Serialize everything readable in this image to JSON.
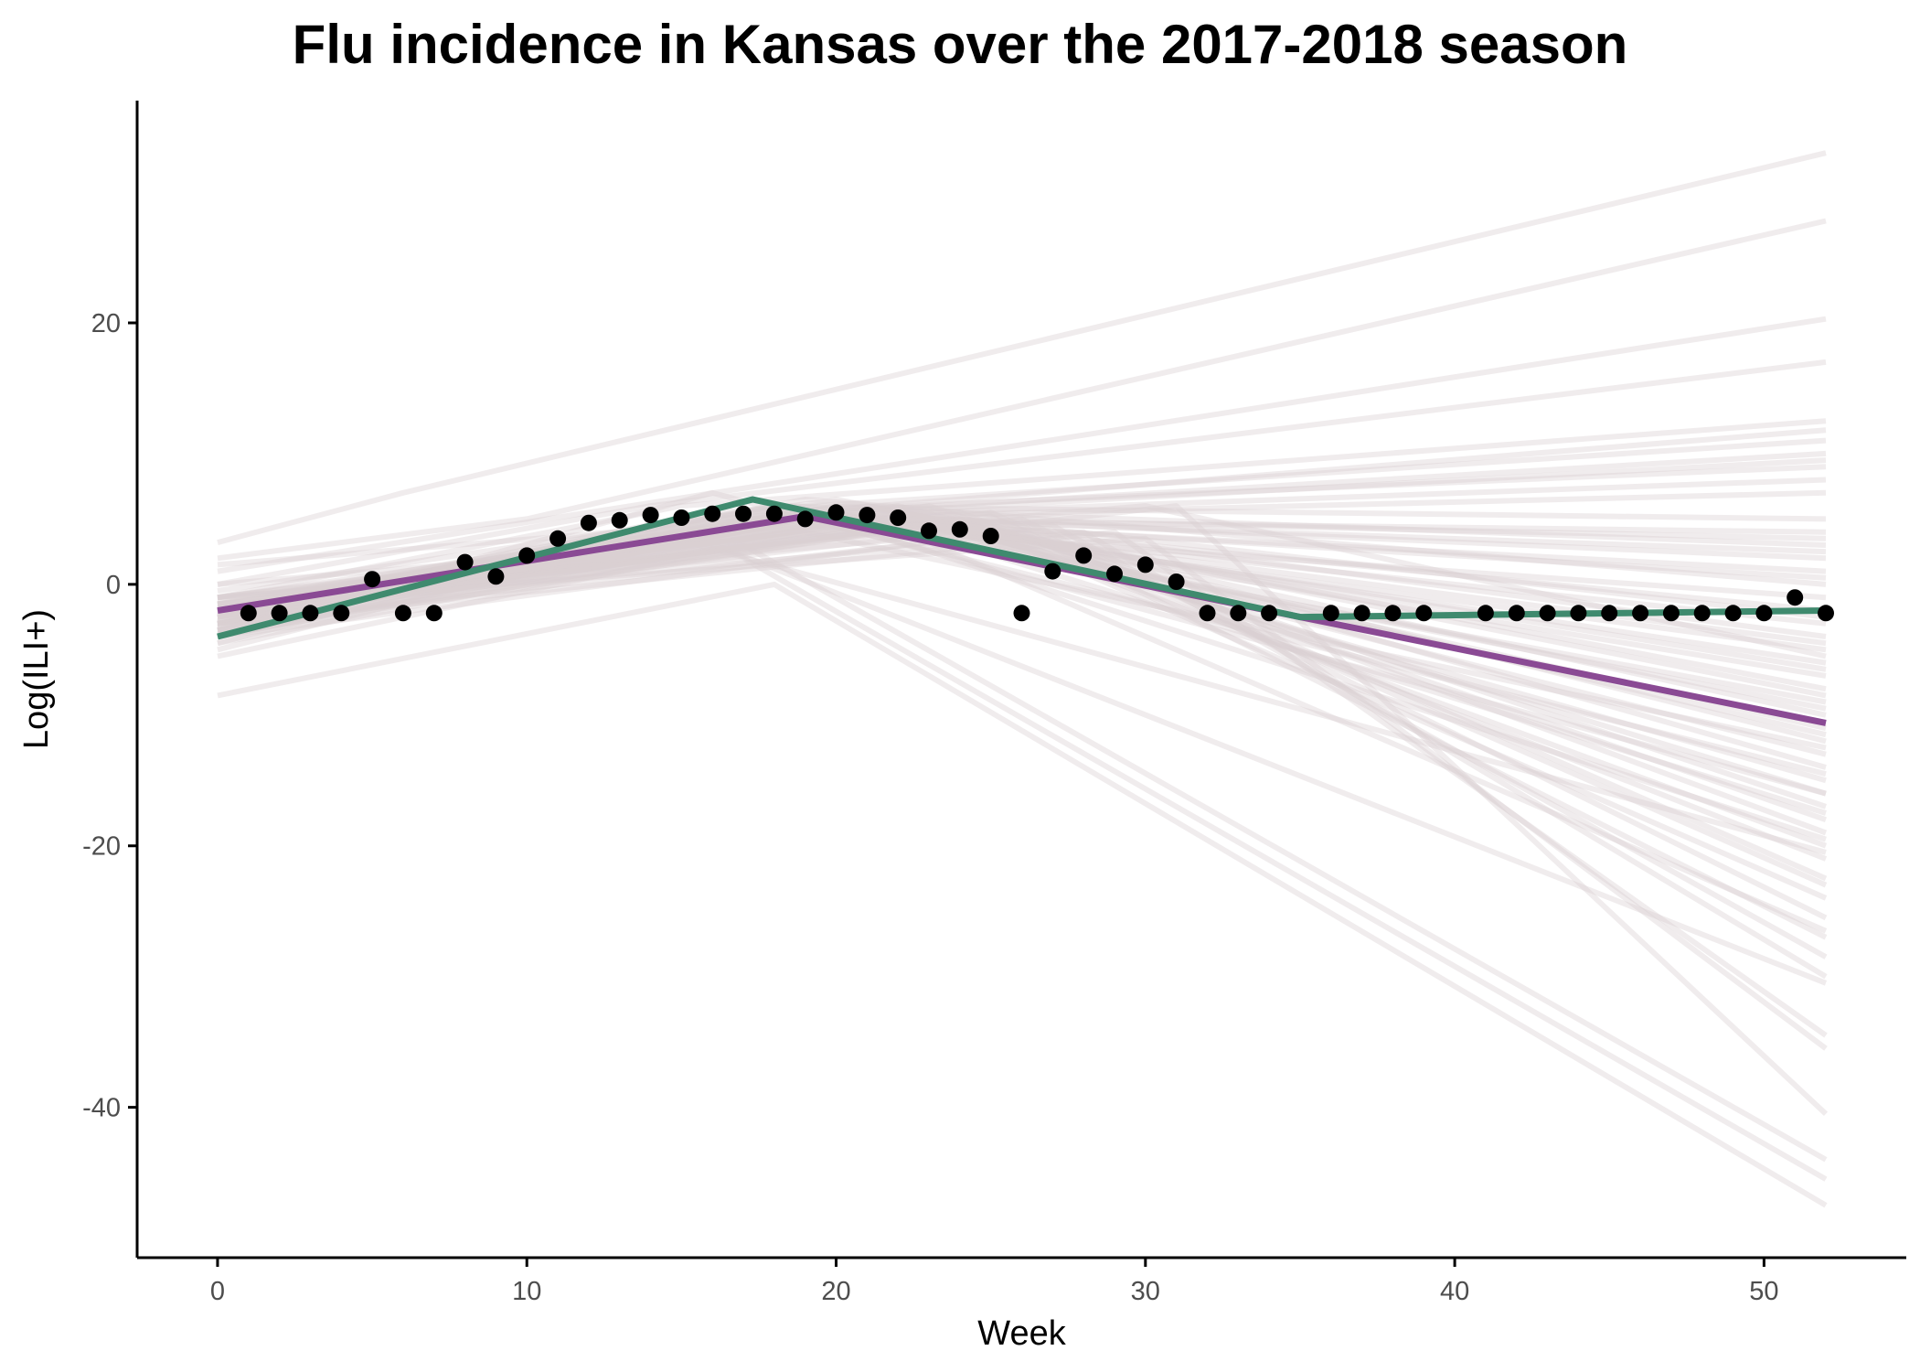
{
  "chart_data": {
    "type": "line",
    "title": "Flu incidence in Kansas over the 2017-2018 season",
    "xlabel": "Week",
    "ylabel": "Log(ILI+)",
    "xlim": [
      -2.6,
      54.6
    ],
    "ylim": [
      -51.5,
      37
    ],
    "x_ticks": [
      0,
      10,
      20,
      30,
      40,
      50
    ],
    "y_ticks": [
      -40,
      -20,
      0,
      20
    ],
    "x_tick_labels": [
      "0",
      "10",
      "20",
      "30",
      "40",
      "50"
    ],
    "y_tick_labels": [
      "-40",
      "-20",
      "0",
      "20"
    ],
    "grid": false,
    "legend": "none",
    "colors": {
      "observed": "#000000",
      "fit_green": "#3f8a6e",
      "fit_purple": "#8a4a94",
      "samples": "#d9cfd2"
    },
    "observed": {
      "x": [
        1,
        2,
        3,
        4,
        5,
        6,
        7,
        8,
        9,
        10,
        11,
        12,
        13,
        14,
        15,
        16,
        17,
        18,
        19,
        20,
        21,
        22,
        23,
        24,
        25,
        26,
        27,
        28,
        29,
        30,
        31,
        32,
        33,
        34,
        36,
        37,
        38,
        39,
        41,
        42,
        43,
        44,
        45,
        46,
        47,
        48,
        49,
        50,
        51,
        52
      ],
      "y": [
        -2.2,
        -2.2,
        -2.2,
        -2.2,
        0.4,
        -2.2,
        -2.2,
        1.7,
        0.6,
        2.2,
        3.5,
        4.7,
        4.9,
        5.3,
        5.1,
        5.4,
        5.4,
        5.4,
        5.0,
        5.5,
        5.3,
        5.1,
        4.1,
        4.2,
        3.7,
        -2.2,
        1.0,
        2.2,
        0.8,
        1.5,
        0.2,
        -2.2,
        -2.2,
        -2.2,
        -2.2,
        -2.2,
        -2.2,
        -2.2,
        -2.2,
        -2.2,
        -2.2,
        -2.2,
        -2.2,
        -2.2,
        -2.2,
        -2.2,
        -2.2,
        -2.2,
        -1.0,
        -2.2
      ]
    },
    "series": [
      {
        "x": [
          0,
          17.3,
          35,
          52
        ],
        "y": [
          -4.0,
          6.5,
          -2.5,
          -2.0
        ]
      },
      {
        "x": [
          0,
          19,
          35,
          52
        ],
        "y": [
          -2.0,
          5.2,
          -2.5,
          -10.6
        ]
      }
    ],
    "sample_lines": [
      {
        "x": [
          0,
          6,
          52
        ],
        "y": [
          3.2,
          7.0,
          33.0
        ]
      },
      {
        "x": [
          0,
          10,
          52
        ],
        "y": [
          2.0,
          5.0,
          27.8
        ]
      },
      {
        "x": [
          0,
          12,
          52
        ],
        "y": [
          1.0,
          5.5,
          20.3
        ]
      },
      {
        "x": [
          0,
          14,
          52
        ],
        "y": [
          0.0,
          6.0,
          17.0
        ]
      },
      {
        "x": [
          0,
          15,
          52
        ],
        "y": [
          -1.0,
          6.0,
          12.5
        ]
      },
      {
        "x": [
          0,
          16,
          52
        ],
        "y": [
          -2.0,
          5.5,
          11.0
        ]
      },
      {
        "x": [
          0,
          16,
          52
        ],
        "y": [
          -3.0,
          5.0,
          10.0
        ]
      },
      {
        "x": [
          0,
          17,
          52
        ],
        "y": [
          -1.5,
          5.5,
          9.0
        ]
      },
      {
        "x": [
          0,
          17,
          52
        ],
        "y": [
          -2.5,
          5.0,
          8.0
        ]
      },
      {
        "x": [
          0,
          18,
          52
        ],
        "y": [
          -3.5,
          6.0,
          5.0
        ]
      },
      {
        "x": [
          0,
          18,
          52
        ],
        "y": [
          -1.0,
          5.0,
          4.0
        ]
      },
      {
        "x": [
          0,
          18,
          52
        ],
        "y": [
          -2.0,
          6.0,
          3.0
        ]
      },
      {
        "x": [
          0,
          18,
          52
        ],
        "y": [
          -3.0,
          5.5,
          2.0
        ]
      },
      {
        "x": [
          0,
          19,
          52
        ],
        "y": [
          -4.0,
          5.0,
          1.0
        ]
      },
      {
        "x": [
          0,
          19,
          52
        ],
        "y": [
          -2.0,
          6.5,
          0.0
        ]
      },
      {
        "x": [
          0,
          19,
          52
        ],
        "y": [
          -3.0,
          4.5,
          -1.0
        ]
      },
      {
        "x": [
          0,
          19,
          52
        ],
        "y": [
          -1.5,
          5.5,
          -2.0
        ]
      },
      {
        "x": [
          0,
          20,
          52
        ],
        "y": [
          -2.5,
          5.0,
          -3.0
        ]
      },
      {
        "x": [
          0,
          20,
          52
        ],
        "y": [
          -3.5,
          6.0,
          -4.0
        ]
      },
      {
        "x": [
          0,
          20,
          52
        ],
        "y": [
          -1.0,
          5.0,
          -5.0
        ]
      },
      {
        "x": [
          0,
          20,
          52
        ],
        "y": [
          -2.0,
          5.5,
          -6.0
        ]
      },
      {
        "x": [
          0,
          21,
          52
        ],
        "y": [
          -3.0,
          5.0,
          -7.0
        ]
      },
      {
        "x": [
          0,
          21,
          52
        ],
        "y": [
          -4.0,
          6.0,
          -8.0
        ]
      },
      {
        "x": [
          0,
          21,
          52
        ],
        "y": [
          -2.0,
          4.5,
          -9.0
        ]
      },
      {
        "x": [
          0,
          22,
          52
        ],
        "y": [
          -3.0,
          5.5,
          -10.0
        ]
      },
      {
        "x": [
          0,
          22,
          52
        ],
        "y": [
          -1.5,
          5.0,
          -11.0
        ]
      },
      {
        "x": [
          0,
          22,
          52
        ],
        "y": [
          -2.5,
          6.0,
          -12.0
        ]
      },
      {
        "x": [
          0,
          22,
          52
        ],
        "y": [
          -3.5,
          5.0,
          -13.0
        ]
      },
      {
        "x": [
          0,
          23,
          52
        ],
        "y": [
          -1.0,
          5.5,
          -14.0
        ]
      },
      {
        "x": [
          0,
          23,
          52
        ],
        "y": [
          -2.0,
          4.5,
          -15.0
        ]
      },
      {
        "x": [
          0,
          23,
          52
        ],
        "y": [
          -3.0,
          5.0,
          -16.0
        ]
      },
      {
        "x": [
          0,
          23,
          52
        ],
        "y": [
          -4.0,
          6.0,
          -17.0
        ]
      },
      {
        "x": [
          0,
          24,
          52
        ],
        "y": [
          -2.0,
          5.0,
          -18.0
        ]
      },
      {
        "x": [
          0,
          24,
          52
        ],
        "y": [
          -3.0,
          5.5,
          -19.0
        ]
      },
      {
        "x": [
          0,
          24,
          52
        ],
        "y": [
          -1.5,
          4.5,
          -20.0
        ]
      },
      {
        "x": [
          0,
          24,
          52
        ],
        "y": [
          -2.5,
          5.0,
          -21.0
        ]
      },
      {
        "x": [
          0,
          25,
          52
        ],
        "y": [
          -3.5,
          5.5,
          -22.5
        ]
      },
      {
        "x": [
          0,
          25,
          52
        ],
        "y": [
          -1.0,
          4.0,
          -24.0
        ]
      },
      {
        "x": [
          0,
          26,
          52
        ],
        "y": [
          -2.0,
          5.0,
          -25.5
        ]
      },
      {
        "x": [
          0,
          26,
          52
        ],
        "y": [
          -3.0,
          4.0,
          -27.0
        ]
      },
      {
        "x": [
          0,
          27,
          52
        ],
        "y": [
          -4.0,
          4.5,
          -28.5
        ]
      },
      {
        "x": [
          0,
          28,
          52
        ],
        "y": [
          -2.0,
          4.0,
          -30.0
        ]
      },
      {
        "x": [
          0,
          29,
          52
        ],
        "y": [
          -3.0,
          4.0,
          -34.5
        ]
      },
      {
        "x": [
          0,
          30,
          52
        ],
        "y": [
          -1.5,
          3.5,
          -35.5
        ]
      },
      {
        "x": [
          0,
          31,
          52
        ],
        "y": [
          -2.5,
          6.0,
          -40.5
        ]
      },
      {
        "x": [
          0,
          17,
          52
        ],
        "y": [
          -1.0,
          2.0,
          -45.5
        ]
      },
      {
        "x": [
          0,
          18,
          52
        ],
        "y": [
          -8.5,
          0.0,
          -47.5
        ]
      },
      {
        "x": [
          0,
          17,
          52
        ],
        "y": [
          -5.5,
          3.0,
          -44.0
        ]
      },
      {
        "x": [
          0,
          15,
          52
        ],
        "y": [
          -5.0,
          4.0,
          -30.5
        ]
      },
      {
        "x": [
          0,
          14,
          52
        ],
        "y": [
          -4.5,
          4.0,
          -20.5
        ]
      },
      {
        "x": [
          0,
          16,
          52
        ],
        "y": [
          -3.5,
          7.0,
          -16.0
        ]
      },
      {
        "x": [
          0,
          30,
          52
        ],
        "y": [
          0.0,
          6.0,
          -5.5
        ]
      },
      {
        "x": [
          0,
          18,
          52
        ],
        "y": [
          1.5,
          5.0,
          7.0
        ]
      },
      {
        "x": [
          0,
          19,
          52
        ],
        "y": [
          -4.5,
          4.0,
          -12.5
        ]
      },
      {
        "x": [
          0,
          20,
          52
        ],
        "y": [
          -0.5,
          6.5,
          -8.5
        ]
      },
      {
        "x": [
          0,
          21,
          52
        ],
        "y": [
          -2.8,
          5.8,
          -2.5
        ]
      },
      {
        "x": [
          0,
          19,
          52
        ],
        "y": [
          -3.2,
          5.2,
          3.5
        ]
      },
      {
        "x": [
          0,
          20,
          52
        ],
        "y": [
          -1.8,
          4.8,
          -19.5
        ]
      },
      {
        "x": [
          0,
          25,
          52
        ],
        "y": [
          -2.2,
          5.2,
          -23.0
        ]
      },
      {
        "x": [
          0,
          22,
          52
        ],
        "y": [
          -3.8,
          4.2,
          -26.5
        ]
      },
      {
        "x": [
          0,
          18,
          52
        ],
        "y": [
          -2.6,
          5.6,
          -14.5
        ]
      },
      {
        "x": [
          0,
          21,
          52
        ],
        "y": [
          -1.2,
          5.2,
          -17.5
        ]
      },
      {
        "x": [
          0,
          17,
          52
        ],
        "y": [
          -3.0,
          5.0,
          9.5
        ]
      },
      {
        "x": [
          0,
          16,
          52
        ],
        "y": [
          -2.0,
          5.0,
          11.8
        ]
      },
      {
        "x": [
          0,
          20,
          52
        ],
        "y": [
          -2.4,
          5.4,
          -9.5
        ]
      },
      {
        "x": [
          0,
          23,
          52
        ],
        "y": [
          -3.6,
          4.6,
          -6.5
        ]
      },
      {
        "x": [
          0,
          19,
          52
        ],
        "y": [
          -1.6,
          5.6,
          -4.5
        ]
      },
      {
        "x": [
          0,
          21,
          52
        ],
        "y": [
          -2.9,
          4.9,
          0.5
        ]
      },
      {
        "x": [
          0,
          18,
          52
        ],
        "y": [
          -3.3,
          5.3,
          2.5
        ]
      },
      {
        "x": [
          0,
          22,
          52
        ],
        "y": [
          -2.1,
          5.1,
          -11.5
        ]
      }
    ]
  }
}
